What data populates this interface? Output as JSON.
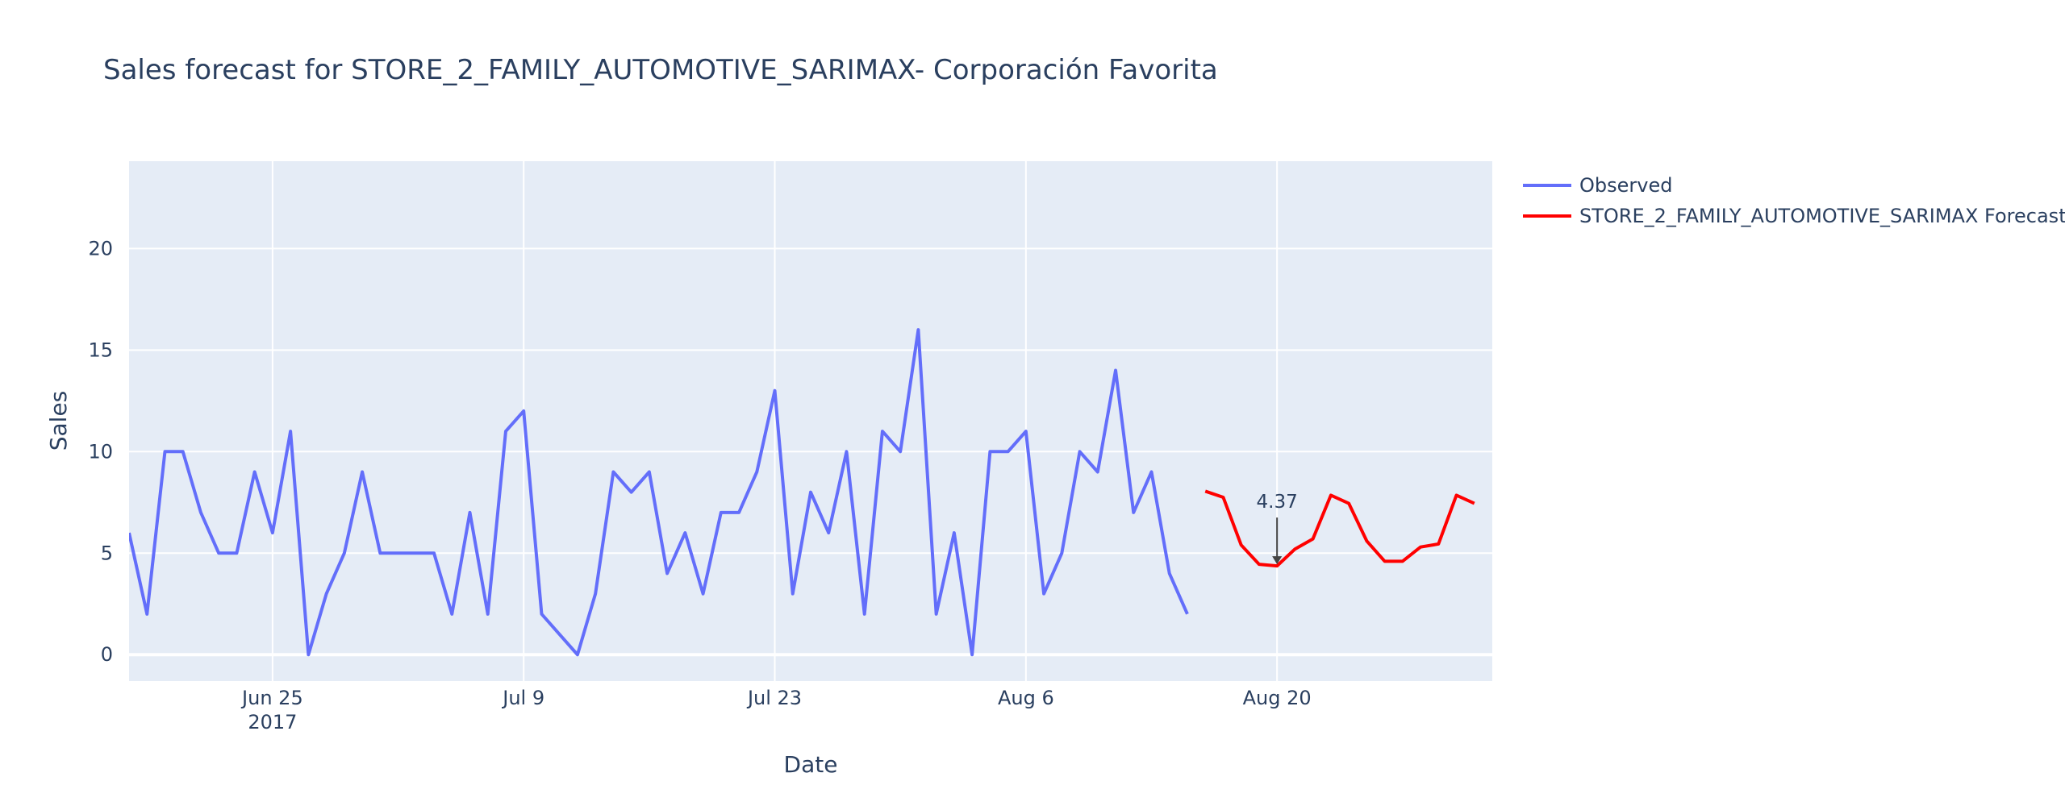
{
  "chart_data": {
    "type": "line",
    "title": "Sales forecast for STORE_2_FAMILY_AUTOMOTIVE_SARIMAX- Corporación Favorita",
    "xlabel": "Date",
    "ylabel": "Sales",
    "xlim": [
      "2017-06-17",
      "2017-09-01"
    ],
    "ylim": [
      -1.3,
      24.3
    ],
    "y_ticks": [
      0,
      5,
      10,
      15,
      20
    ],
    "x_ticks": [
      {
        "date": "2017-06-25",
        "label": "Jun 25",
        "sublabel": "2017"
      },
      {
        "date": "2017-07-09",
        "label": "Jul 9",
        "sublabel": ""
      },
      {
        "date": "2017-07-23",
        "label": "Jul 23",
        "sublabel": ""
      },
      {
        "date": "2017-08-06",
        "label": "Aug 6",
        "sublabel": ""
      },
      {
        "date": "2017-08-20",
        "label": "Aug 20",
        "sublabel": ""
      }
    ],
    "grid": true,
    "legend_position": "top-right",
    "series": [
      {
        "name": "Observed",
        "color": "#636efa",
        "start_date": "2017-06-17",
        "values": [
          6,
          2,
          10,
          10,
          7,
          5,
          5,
          9,
          6,
          11,
          0,
          3,
          5,
          9,
          5,
          5,
          5,
          5,
          2,
          7,
          2,
          11,
          12,
          2,
          1,
          0,
          3,
          9,
          8,
          9,
          4,
          6,
          3,
          7,
          7,
          9,
          13,
          3,
          8,
          6,
          10,
          2,
          11,
          10,
          16,
          2,
          6,
          0,
          10,
          10,
          11,
          3,
          5,
          10,
          9,
          14,
          7,
          9,
          4,
          2
        ]
      },
      {
        "name": "STORE_2_FAMILY_AUTOMOTIVE_SARIMAX Forecast",
        "color": "#ff0000",
        "start_date": "2017-08-16",
        "values": [
          8.05,
          7.75,
          5.4,
          4.45,
          4.37,
          5.2,
          5.7,
          7.85,
          7.45,
          5.6,
          4.6,
          4.6,
          5.3,
          5.45,
          7.85,
          7.45
        ]
      }
    ],
    "annotations": [
      {
        "text": "4.37",
        "date": "2017-08-20",
        "value": 4.37
      }
    ]
  }
}
